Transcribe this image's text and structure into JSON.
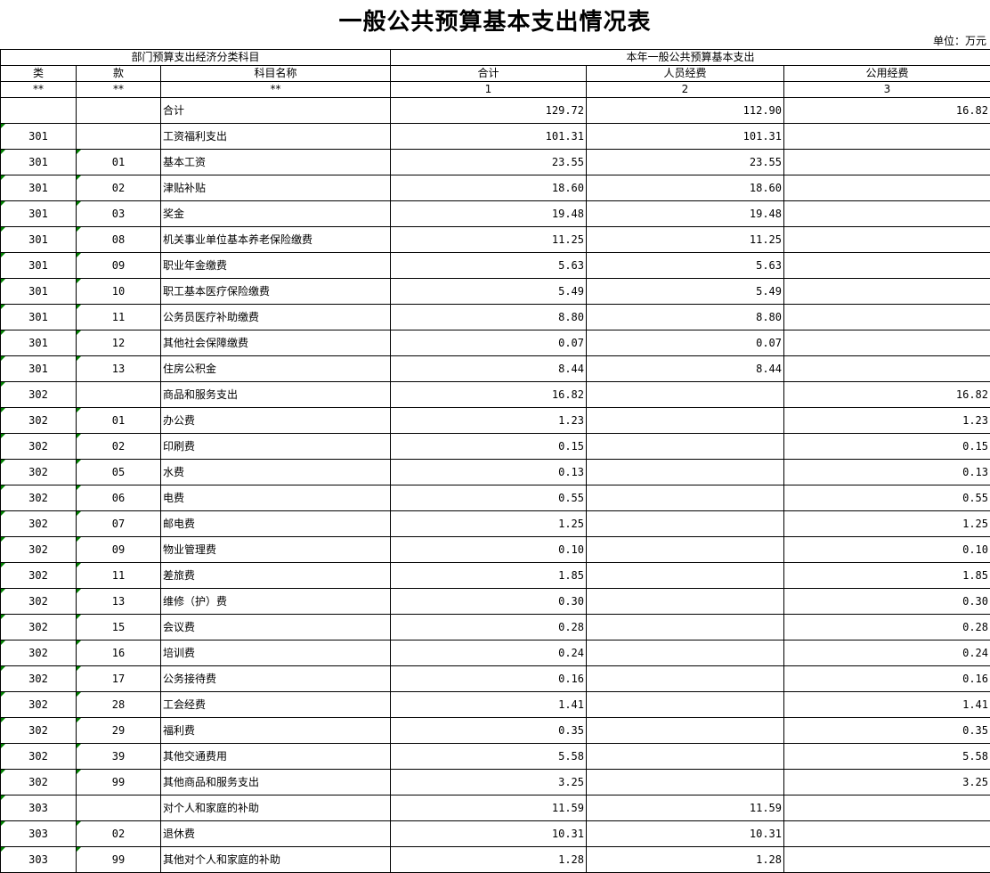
{
  "title": "一般公共预算基本支出情况表",
  "unit": "单位：万元",
  "header": {
    "group_left": "部门预算支出经济分类科目",
    "group_right": "本年一般公共预算基本支出",
    "cols": [
      "类",
      "款",
      "科目名称",
      "合计",
      "人员经费",
      "公用经费"
    ],
    "codes": [
      "**",
      "**",
      "**",
      "1",
      "2",
      "3"
    ]
  },
  "rows": [
    [
      "",
      "",
      "合计",
      "129.72",
      "112.90",
      "16.82"
    ],
    [
      "301",
      "",
      "工资福利支出",
      "101.31",
      "101.31",
      ""
    ],
    [
      "301",
      "01",
      "基本工资",
      "23.55",
      "23.55",
      ""
    ],
    [
      "301",
      "02",
      "津贴补贴",
      "18.60",
      "18.60",
      ""
    ],
    [
      "301",
      "03",
      "奖金",
      "19.48",
      "19.48",
      ""
    ],
    [
      "301",
      "08",
      "机关事业单位基本养老保险缴费",
      "11.25",
      "11.25",
      ""
    ],
    [
      "301",
      "09",
      "职业年金缴费",
      "5.63",
      "5.63",
      ""
    ],
    [
      "301",
      "10",
      "职工基本医疗保险缴费",
      "5.49",
      "5.49",
      ""
    ],
    [
      "301",
      "11",
      "公务员医疗补助缴费",
      "8.80",
      "8.80",
      ""
    ],
    [
      "301",
      "12",
      "其他社会保障缴费",
      "0.07",
      "0.07",
      ""
    ],
    [
      "301",
      "13",
      "住房公积金",
      "8.44",
      "8.44",
      ""
    ],
    [
      "302",
      "",
      "商品和服务支出",
      "16.82",
      "",
      "16.82"
    ],
    [
      "302",
      "01",
      "办公费",
      "1.23",
      "",
      "1.23"
    ],
    [
      "302",
      "02",
      "印刷费",
      "0.15",
      "",
      "0.15"
    ],
    [
      "302",
      "05",
      "水费",
      "0.13",
      "",
      "0.13"
    ],
    [
      "302",
      "06",
      "电费",
      "0.55",
      "",
      "0.55"
    ],
    [
      "302",
      "07",
      "邮电费",
      "1.25",
      "",
      "1.25"
    ],
    [
      "302",
      "09",
      "物业管理费",
      "0.10",
      "",
      "0.10"
    ],
    [
      "302",
      "11",
      "差旅费",
      "1.85",
      "",
      "1.85"
    ],
    [
      "302",
      "13",
      "维修（护）费",
      "0.30",
      "",
      "0.30"
    ],
    [
      "302",
      "15",
      "会议费",
      "0.28",
      "",
      "0.28"
    ],
    [
      "302",
      "16",
      "培训费",
      "0.24",
      "",
      "0.24"
    ],
    [
      "302",
      "17",
      "公务接待费",
      "0.16",
      "",
      "0.16"
    ],
    [
      "302",
      "28",
      "工会经费",
      "1.41",
      "",
      "1.41"
    ],
    [
      "302",
      "29",
      "福利费",
      "0.35",
      "",
      "0.35"
    ],
    [
      "302",
      "39",
      "其他交通费用",
      "5.58",
      "",
      "5.58"
    ],
    [
      "302",
      "99",
      "其他商品和服务支出",
      "3.25",
      "",
      "3.25"
    ],
    [
      "303",
      "",
      "对个人和家庭的补助",
      "11.59",
      "11.59",
      ""
    ],
    [
      "303",
      "02",
      "退休费",
      "10.31",
      "10.31",
      ""
    ],
    [
      "303",
      "99",
      "其他对个人和家庭的补助",
      "1.28",
      "1.28",
      ""
    ]
  ]
}
